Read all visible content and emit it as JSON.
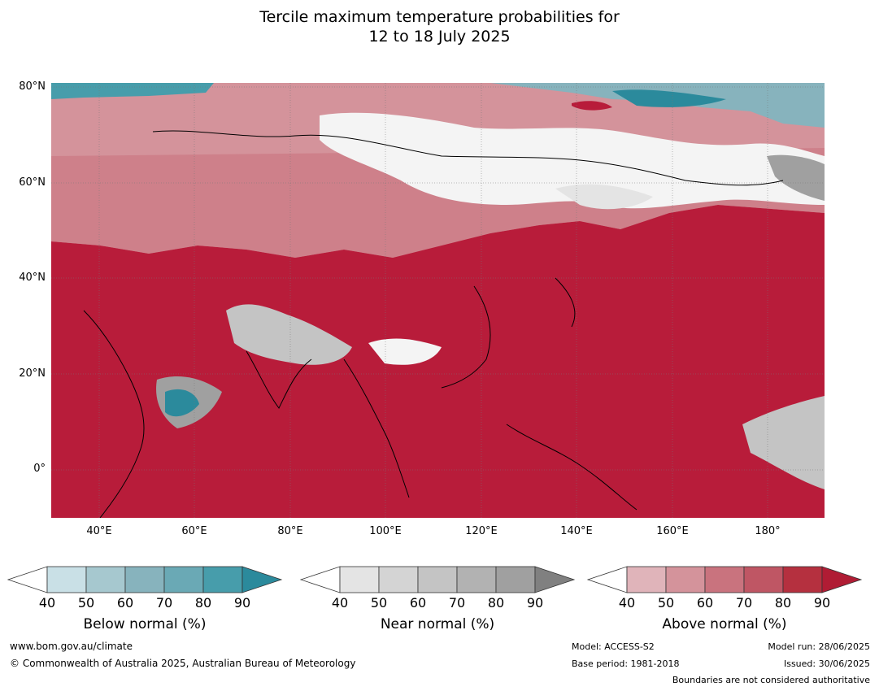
{
  "title_line1": "Tercile maximum temperature probabilities for",
  "title_line2": "12 to 18 July 2025",
  "map": {
    "lat_labels": [
      "80°N",
      "60°N",
      "40°N",
      "20°N",
      "0°"
    ],
    "lon_labels": [
      "40°E",
      "60°E",
      "80°E",
      "100°E",
      "120°E",
      "140°E",
      "160°E",
      "180°"
    ],
    "extent": {
      "lon_min": 30,
      "lon_max": 192,
      "lat_min": -10,
      "lat_max": 81
    },
    "colors": {
      "above_dominant": "#b81c3a",
      "ocean": "#b81c3a",
      "land_above": "#c8505e"
    }
  },
  "legends": [
    {
      "title": "Below normal (%)",
      "ticks": [
        "40",
        "50",
        "60",
        "70",
        "80",
        "90"
      ],
      "colors": [
        "#ffffff",
        "#c9e0e6",
        "#a6c8cf",
        "#87b3bd",
        "#6aa9b5",
        "#479dab",
        "#2b8a9c"
      ]
    },
    {
      "title": "Near normal (%)",
      "ticks": [
        "40",
        "50",
        "60",
        "70",
        "80",
        "90"
      ],
      "colors": [
        "#ffffff",
        "#e4e4e4",
        "#d4d4d4",
        "#c4c4c4",
        "#b2b2b2",
        "#a0a0a0",
        "#808080"
      ]
    },
    {
      "title": "Above normal (%)",
      "ticks": [
        "40",
        "50",
        "60",
        "70",
        "80",
        "90"
      ],
      "colors": [
        "#ffffff",
        "#e0b4ba",
        "#d4939b",
        "#c9737e",
        "#bf5664",
        "#b5303f",
        "#b01c34"
      ]
    }
  ],
  "footer": {
    "website": "www.bom.gov.au/climate",
    "copyright": "© Commonwealth of Australia 2025, Australian Bureau of Meteorology",
    "model": "Model: ACCESS-S2",
    "base_period": "Base period: 1981-2018",
    "model_run": "Model run: 28/06/2025",
    "issued": "Issued: 30/06/2025",
    "boundaries": "Boundaries are not considered authoritative"
  }
}
